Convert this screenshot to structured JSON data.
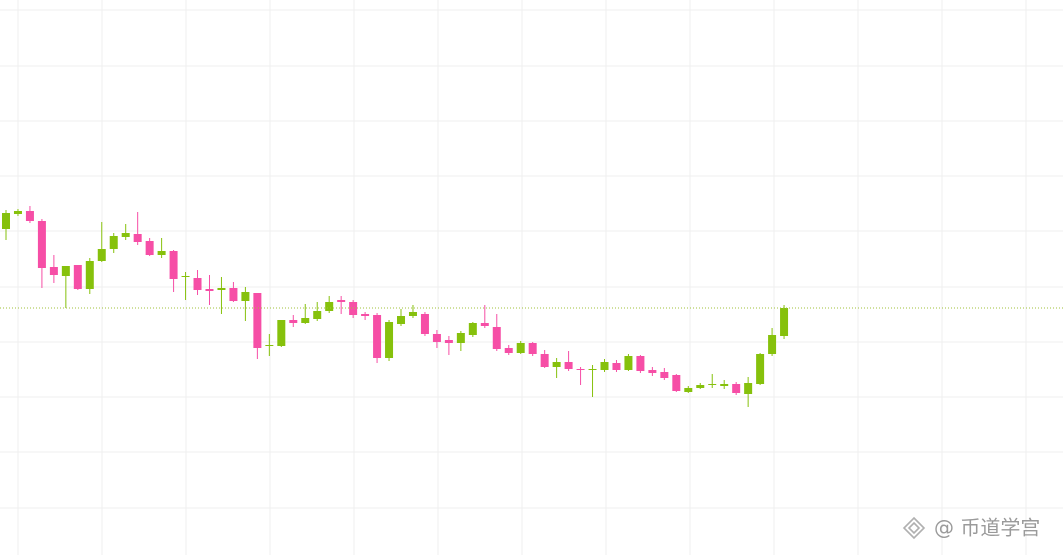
{
  "chart_data": {
    "type": "candlestick",
    "open": [
      326,
      341,
      344,
      334,
      288,
      279,
      290,
      266,
      294,
      306,
      318,
      321,
      314,
      300,
      304,
      278,
      277,
      266,
      265,
      267,
      254,
      262,
      209,
      209,
      235,
      232,
      236,
      244,
      255,
      253,
      241,
      240,
      197,
      231,
      239,
      241,
      221,
      215,
      212,
      220,
      232,
      228,
      207,
      202,
      212,
      201,
      188,
      193,
      186,
      185,
      185,
      192,
      185,
      199,
      185,
      183,
      180,
      163,
      167,
      170,
      169,
      171,
      161,
      171,
      201,
      219
    ],
    "high": [
      345,
      346,
      349,
      336,
      300,
      289,
      290,
      297,
      333,
      322,
      331,
      343,
      317,
      317,
      305,
      283,
      285,
      280,
      278,
      273,
      268,
      262,
      221,
      235,
      240,
      251,
      253,
      259,
      259,
      255,
      243,
      242,
      235,
      246,
      250,
      243,
      225,
      219,
      224,
      233,
      250,
      241,
      210,
      214,
      213,
      205,
      197,
      204,
      188,
      190,
      196,
      195,
      201,
      200,
      188,
      187,
      181,
      169,
      172,
      181,
      175,
      173,
      178,
      202,
      227,
      250
    ],
    "low": [
      315,
      339,
      332,
      267,
      272,
      247,
      265,
      261,
      293,
      302,
      315,
      310,
      299,
      297,
      263,
      255,
      260,
      250,
      241,
      253,
      234,
      196,
      199,
      208,
      228,
      231,
      234,
      242,
      241,
      237,
      235,
      192,
      194,
      229,
      237,
      219,
      207,
      200,
      204,
      218,
      227,
      204,
      200,
      201,
      199,
      187,
      177,
      184,
      170,
      158,
      183,
      183,
      184,
      182,
      179,
      175,
      163,
      162,
      166,
      167,
      166,
      160,
      148,
      170,
      199,
      216
    ],
    "close": [
      342,
      344,
      334,
      287,
      280,
      289,
      266,
      294,
      306,
      319,
      322,
      313,
      300,
      304,
      276,
      279,
      265,
      264,
      267,
      254,
      263,
      207,
      210,
      235,
      232,
      237,
      244,
      253,
      253,
      240,
      239,
      197,
      233,
      239,
      243,
      221,
      213,
      212,
      222,
      232,
      229,
      206,
      202,
      212,
      201,
      188,
      193,
      186,
      185,
      186,
      193,
      185,
      199,
      184,
      182,
      177,
      164,
      167,
      170,
      171,
      171,
      162,
      172,
      201,
      220,
      247
    ],
    "up_color": "#86c10c",
    "down_color": "#f64ea6",
    "ylim": [
      0,
      555
    ],
    "yticks": [
      47,
      103,
      158,
      213,
      268,
      324,
      379,
      434,
      489,
      545
    ],
    "grid": true,
    "last_price": 247,
    "last_price_color": "#9fc23a",
    "watermark": "@ 币道学宫"
  }
}
